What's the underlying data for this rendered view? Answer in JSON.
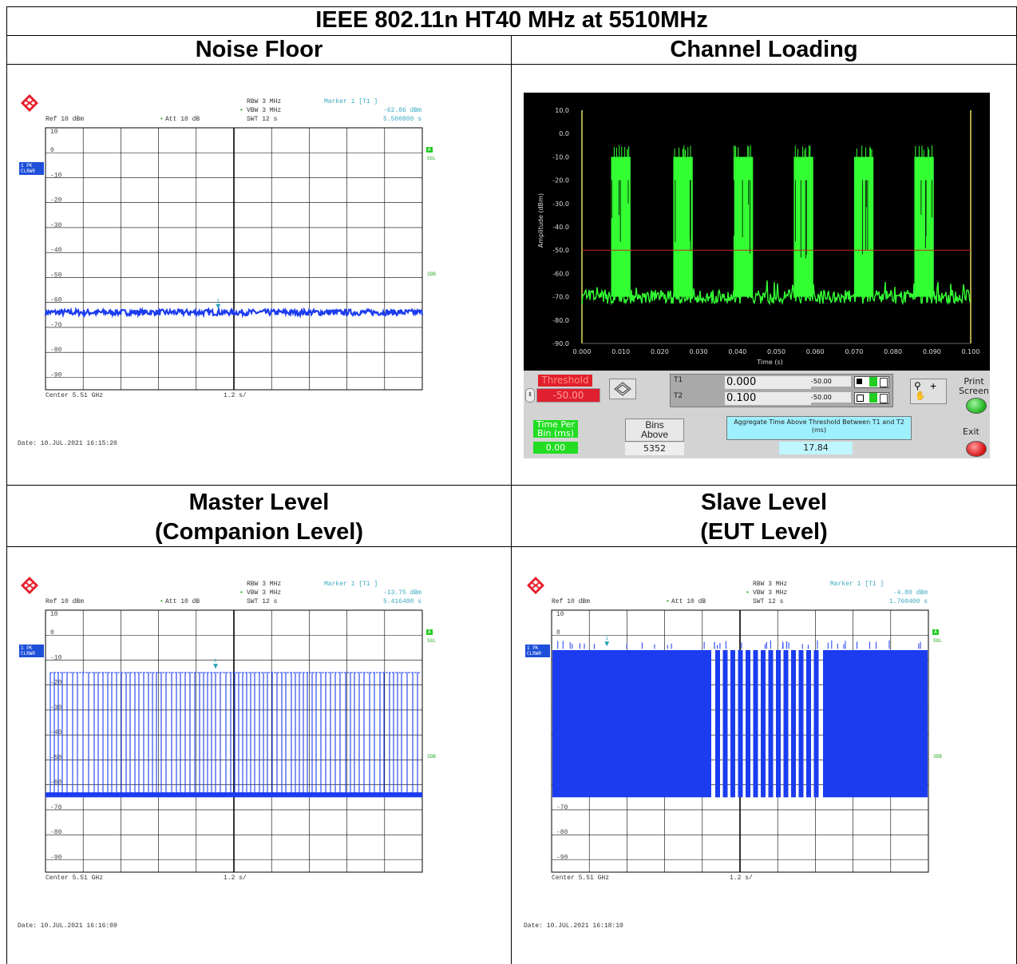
{
  "title": "IEEE 802.11n HT40 MHz at 5510MHz",
  "headers": {
    "noise_floor": "Noise Floor",
    "channel_loading": "Channel Loading",
    "master_line1": "Master Level",
    "master_line2": "(Companion Level)",
    "slave_line1": "Slave Level",
    "slave_line2": "(EUT Level)"
  },
  "analyzer_common": {
    "rbw": "RBW  3 MHz",
    "vbw": "VBW  3 MHz",
    "swt": "SWT  12 s",
    "ref": "Ref   10  dBm",
    "att": "Att   10  dB",
    "center": "Center  5.51  GHz",
    "span": "1.2  s/",
    "trace_badge_1": "1 PK",
    "trace_badge_2": "CLRWR",
    "a_badge": "A",
    "sgl": "SGL",
    "tdb": "3DB",
    "y_ticks": [
      "10",
      "0",
      "-10",
      "-20",
      "-30",
      "-40",
      "-50",
      "-60",
      "-70",
      "-80",
      "-90"
    ],
    "trace_color": "#1c3cf0"
  },
  "noise_floor": {
    "marker_title": "Marker  1  [T1 ]",
    "marker_level": "-62.86  dBm",
    "marker_time": "5.500800  s",
    "date": "Date:  10.JUL.2021   16:15:20"
  },
  "master_level": {
    "marker_title": "Marker  1  [T1 ]",
    "marker_level": "-13.75  dBm",
    "marker_time": "5.416400  s",
    "date": "Date:  10.JUL.2021   16:16:09"
  },
  "slave_level": {
    "marker_title": "Marker  1  [T1 ]",
    "marker_level": "-4.80  dBm",
    "marker_time": "1.760400  s",
    "date": "Date:  10.JUL.2021   16:18:10"
  },
  "channel_loading_panel": {
    "y_axis_label": "Amplitude (dBm)",
    "x_axis_label": "Time (s)",
    "threshold_label": "Threshold",
    "threshold_value": "-50.00",
    "t1_label": "T1",
    "t1_value": "0.000",
    "t1_amp": "-50.00",
    "t2_label": "T2",
    "t2_value": "0.100",
    "t2_amp": "-50.00",
    "print_screen": "Print\nScreen",
    "time_per_bin_label": "Time Per\nBin (ms)",
    "time_per_bin_value": "0.00",
    "bins_above_label": "Bins\nAbove",
    "bins_above_value": "5352",
    "aggregate_label": "Aggregate Time Above Threshold Between T1 and T2 (ms)",
    "aggregate_value": "17.84",
    "exit_label": "Exit",
    "trace_color": "#33ff33",
    "threshold_color": "#cc2222"
  },
  "chart_data": [
    {
      "type": "line",
      "id": "noise_floor",
      "xlabel": "",
      "ylabel": "",
      "ylim": [
        -95,
        10
      ],
      "x_range_s": [
        0,
        12
      ],
      "series": [
        {
          "values": [
            -64,
            -64,
            -64,
            -64,
            -64,
            -64,
            -64,
            -64,
            -64,
            -64,
            -64
          ]
        }
      ],
      "marker": {
        "x": 5.5008,
        "y": -62.86
      }
    },
    {
      "type": "line",
      "id": "channel_loading",
      "xlabel": "Time (s)",
      "ylabel": "Amplitude (dBm)",
      "xlim": [
        0.0,
        0.1
      ],
      "ylim": [
        -90,
        10
      ],
      "x_ticks": [
        "0.000",
        "0.010",
        "0.020",
        "0.030",
        "0.040",
        "0.050",
        "0.060",
        "0.070",
        "0.080",
        "0.090",
        "0.100"
      ],
      "y_ticks": [
        "10.0",
        "0.0",
        "-10.0",
        "-20.0",
        "-30.0",
        "-40.0",
        "-50.0",
        "-60.0",
        "-70.0",
        "-80.0",
        "-90.0"
      ],
      "threshold": -50,
      "baseline": -70,
      "bursts": [
        {
          "start": 0.0075,
          "end": 0.0125,
          "peak": -10
        },
        {
          "start": 0.0235,
          "end": 0.0285,
          "peak": -10
        },
        {
          "start": 0.039,
          "end": 0.044,
          "peak": -10
        },
        {
          "start": 0.0545,
          "end": 0.0595,
          "peak": -10
        },
        {
          "start": 0.07,
          "end": 0.075,
          "peak": -10
        },
        {
          "start": 0.0855,
          "end": 0.0905,
          "peak": -10
        }
      ]
    },
    {
      "type": "line",
      "id": "master_level",
      "xlabel": "",
      "ylabel": "",
      "ylim": [
        -95,
        10
      ],
      "x_range_s": [
        0,
        12
      ],
      "baseline": -64,
      "burst_peak": -15,
      "marker": {
        "x": 5.4164,
        "y": -13.75
      }
    },
    {
      "type": "line",
      "id": "slave_level",
      "xlabel": "",
      "ylabel": "",
      "ylim": [
        -95,
        10
      ],
      "x_range_s": [
        0,
        12
      ],
      "baseline": -65,
      "burst_peak": -6,
      "marker": {
        "x": 1.7604,
        "y": -4.8
      }
    }
  ]
}
